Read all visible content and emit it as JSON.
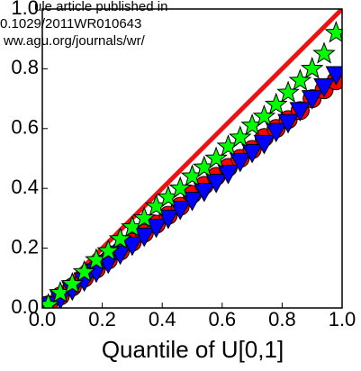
{
  "chart_data": {
    "type": "scatter",
    "xlabel": "Quantile of U[0,1]",
    "annotations": [
      "ule article published in",
      "0.1029/2011WR010643",
      "ww.agu.org/journals/wr/"
    ],
    "x": [
      0.02,
      0.06,
      0.1,
      0.14,
      0.18,
      0.22,
      0.26,
      0.3,
      0.34,
      0.38,
      0.42,
      0.46,
      0.5,
      0.54,
      0.58,
      0.62,
      0.66,
      0.7,
      0.74,
      0.78,
      0.82,
      0.86,
      0.9,
      0.94,
      0.98
    ],
    "series": [
      {
        "marker": "circle",
        "color": "#ff0000",
        "values": [
          0.01,
          0.04,
          0.07,
          0.1,
          0.13,
          0.16,
          0.19,
          0.22,
          0.25,
          0.28,
          0.31,
          0.34,
          0.38,
          0.41,
          0.44,
          0.47,
          0.5,
          0.53,
          0.57,
          0.6,
          0.63,
          0.66,
          0.7,
          0.73,
          0.76
        ]
      },
      {
        "marker": "triangle-down",
        "color": "#0000ff",
        "values": [
          0.01,
          0.03,
          0.06,
          0.09,
          0.12,
          0.15,
          0.18,
          0.21,
          0.24,
          0.27,
          0.3,
          0.33,
          0.36,
          0.39,
          0.42,
          0.45,
          0.49,
          0.52,
          0.55,
          0.59,
          0.62,
          0.66,
          0.7,
          0.74,
          0.78
        ]
      },
      {
        "marker": "star",
        "color": "#00ff00",
        "values": [
          0.01,
          0.05,
          0.08,
          0.12,
          0.16,
          0.19,
          0.23,
          0.27,
          0.3,
          0.34,
          0.37,
          0.4,
          0.44,
          0.47,
          0.5,
          0.54,
          0.57,
          0.61,
          0.64,
          0.68,
          0.72,
          0.76,
          0.8,
          0.85,
          0.92
        ]
      }
    ],
    "reference_line_color": "#ee1111",
    "xlim": [
      0,
      1
    ],
    "ylim": [
      0,
      1
    ],
    "xticks": [
      {
        "value": 0,
        "label": "0.0"
      },
      0.2,
      0.4,
      0.6,
      0.8,
      {
        "value": 1,
        "label": "1.0"
      }
    ],
    "yticks": [
      {
        "value": 0,
        "label": "0.0"
      },
      0.2,
      0.4,
      0.6,
      0.8,
      {
        "value": 1,
        "label": "1.0"
      }
    ]
  }
}
